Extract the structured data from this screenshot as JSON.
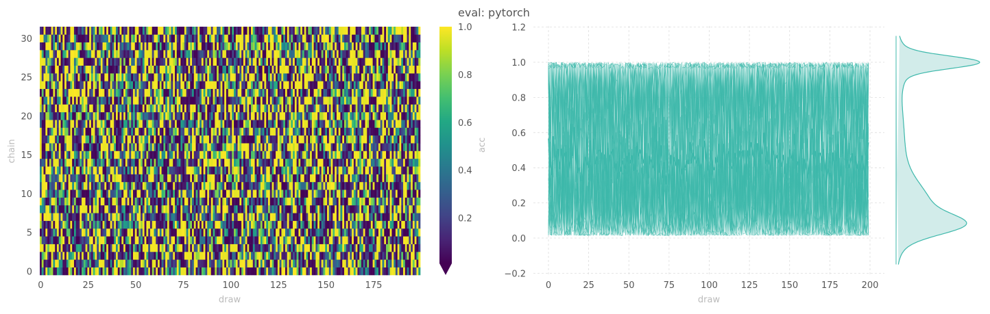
{
  "title": "eval: pytorch",
  "chart_data": [
    {
      "type": "heatmap",
      "xlabel": "draw",
      "ylabel": "chain",
      "rows": 32,
      "cols": 200,
      "value_distribution": "bimodal, peaks near 0.07 and 1.0",
      "xticks": [
        "0",
        "25",
        "50",
        "75",
        "100",
        "125",
        "150",
        "175"
      ],
      "yticks": [
        "0",
        "5",
        "10",
        "15",
        "20",
        "25",
        "30"
      ],
      "colorbar": {
        "label": "acc",
        "cmap": "viridis",
        "range": [
          0.01,
          1.0
        ],
        "extend": "min",
        "ticks": [
          "0.2",
          "0.4",
          "0.6",
          "0.8",
          "1.0"
        ]
      }
    },
    {
      "type": "line",
      "xlabel": "draw",
      "ylabel": "",
      "xlim": [
        -10,
        209
      ],
      "ylim": [
        -0.2,
        1.2
      ],
      "xticks": [
        "0",
        "25",
        "50",
        "75",
        "100",
        "125",
        "150",
        "175",
        "200"
      ],
      "yticks": [
        "−0.2",
        "0.0",
        "0.2",
        "0.4",
        "0.6",
        "0.8",
        "1.0",
        "1.2"
      ],
      "series_count": 32,
      "mean_line_level": 0.44,
      "color": "#3db8ab",
      "grid": true
    },
    {
      "type": "area",
      "description": "marginal KDE of acc",
      "orientation": "vertical",
      "peaks": [
        0.07,
        1.0
      ],
      "range": [
        -0.15,
        1.15
      ],
      "color": "#3db8ab",
      "fill": "#d2ecea"
    }
  ]
}
